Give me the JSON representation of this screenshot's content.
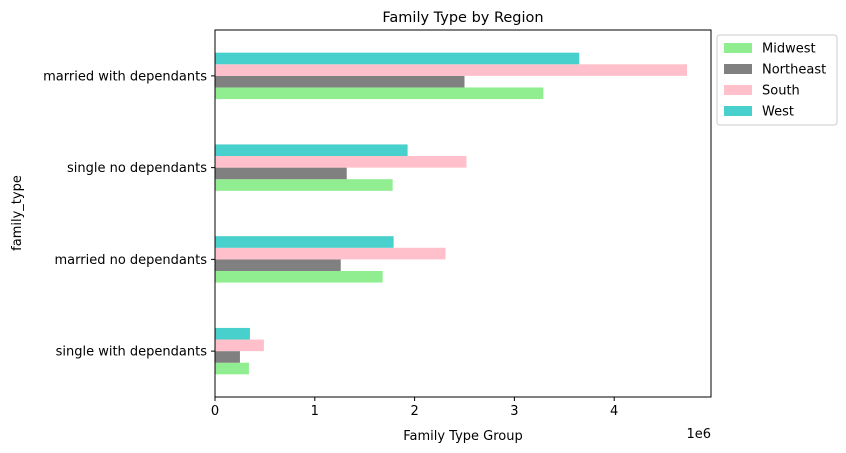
{
  "chart_data": {
    "type": "bar",
    "orientation": "horizontal",
    "title": "Family Type by Region",
    "xlabel": "Family Type Group",
    "ylabel": "family_type",
    "x_offset_label": "1e6",
    "xlim": [
      0,
      4.97
    ],
    "x_ticks": [
      0,
      1,
      2,
      3,
      4
    ],
    "x_tick_labels": [
      "0",
      "1",
      "2",
      "3",
      "4"
    ],
    "grid": false,
    "legend_position": "outside-top-right",
    "categories": [
      "single with dependants",
      "married no dependants",
      "single no dependants",
      "married with dependants"
    ],
    "series": [
      {
        "name": "Midwest",
        "color": "#90ee90",
        "values": [
          0.34,
          1.68,
          1.78,
          3.29
        ]
      },
      {
        "name": "Northeast",
        "color": "#808080",
        "values": [
          0.25,
          1.26,
          1.32,
          2.5
        ]
      },
      {
        "name": "South",
        "color": "#ffc0cb",
        "values": [
          0.49,
          2.31,
          2.52,
          4.73
        ]
      },
      {
        "name": "West",
        "color": "#48d1cc",
        "values": [
          0.35,
          1.79,
          1.93,
          3.65
        ]
      }
    ]
  }
}
